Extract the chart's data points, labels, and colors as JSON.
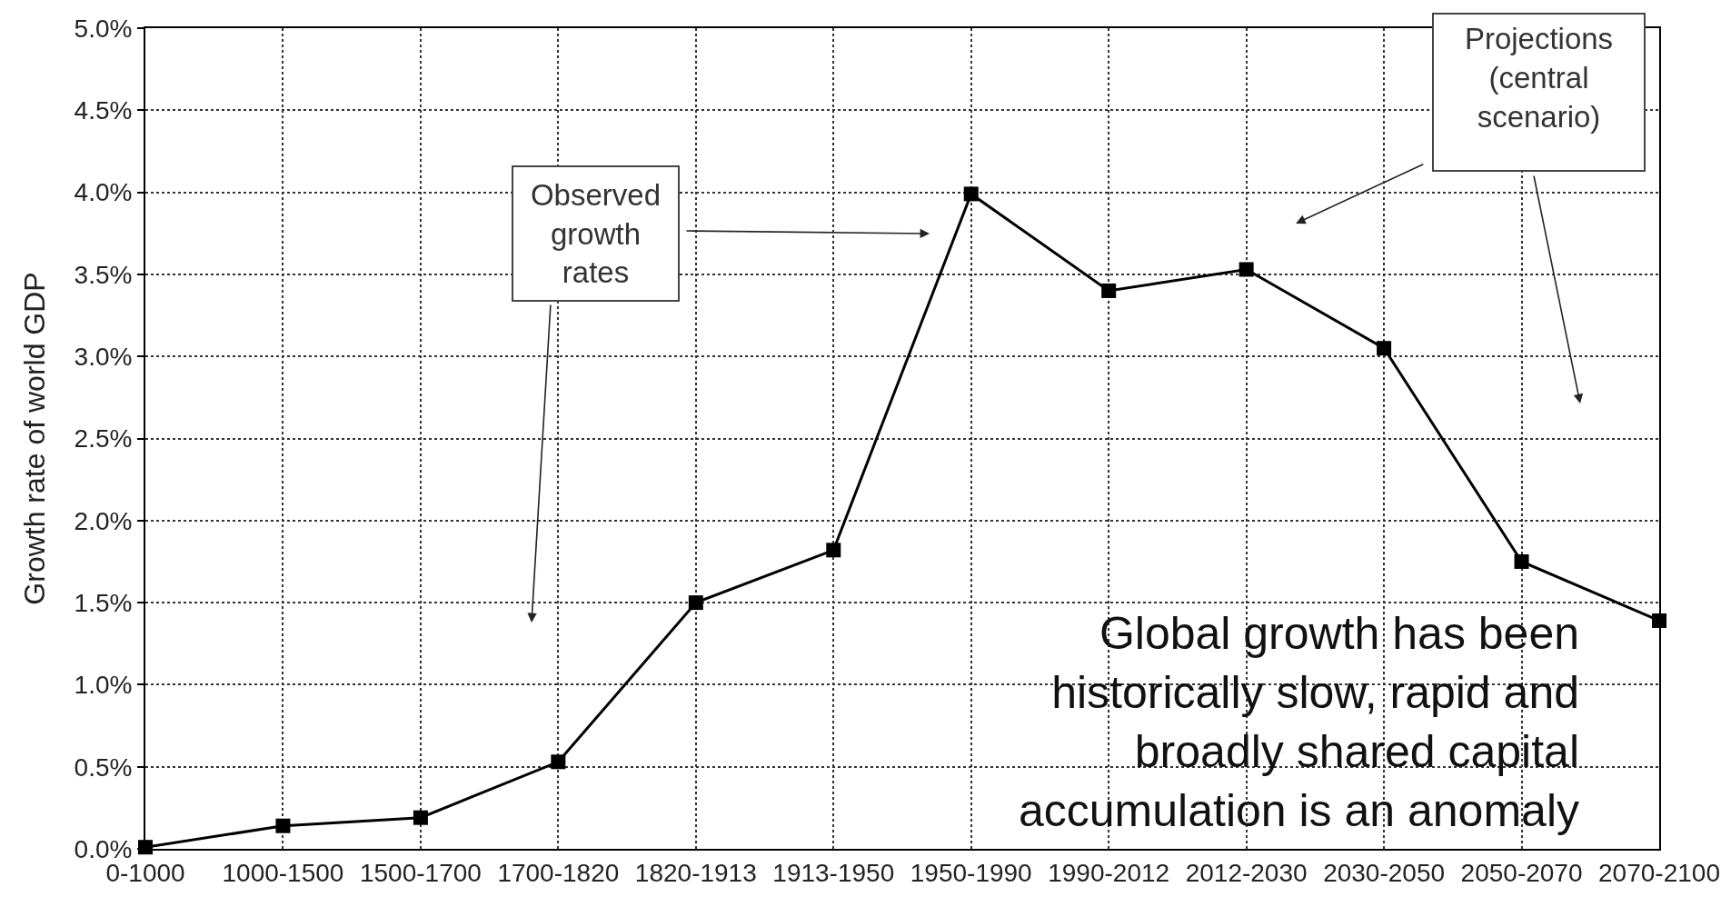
{
  "chart_data": {
    "type": "line",
    "categories": [
      "0-1000",
      "1000-1500",
      "1500-1700",
      "1700-1820",
      "1820-1913",
      "1913-1950",
      "1950-1990",
      "1990-2012",
      "2012-2030",
      "2030-2050",
      "2050-2070",
      "2070-2100"
    ],
    "values": [
      0.01,
      0.14,
      0.19,
      0.53,
      1.5,
      1.82,
      3.99,
      3.4,
      3.53,
      3.05,
      1.75,
      1.39
    ],
    "color": "#000000",
    "ylabel": "Growth rate of world GDP",
    "ylim": [
      0,
      5
    ],
    "yticks": [
      {
        "value": 0,
        "label": "0.0%"
      },
      {
        "value": 0.5,
        "label": "0.5%"
      },
      {
        "value": 1,
        "label": "1.0%"
      },
      {
        "value": 1.5,
        "label": "1.5%"
      },
      {
        "value": 2,
        "label": "2.0%"
      },
      {
        "value": 2.5,
        "label": "2.5%"
      },
      {
        "value": 3,
        "label": "3.0%"
      },
      {
        "value": 3.5,
        "label": "3.5%"
      },
      {
        "value": 4,
        "label": "4.0%"
      },
      {
        "value": 4.5,
        "label": "4.5%"
      },
      {
        "value": 5,
        "label": "5.0%"
      }
    ],
    "grid": true,
    "marker": "square",
    "line_style": "solid",
    "annotations": [
      "Observed growth rates",
      "Projections (central scenario)",
      "Global growth has been historically slow, rapid and broadly shared capital accumulation is an anomaly"
    ]
  }
}
